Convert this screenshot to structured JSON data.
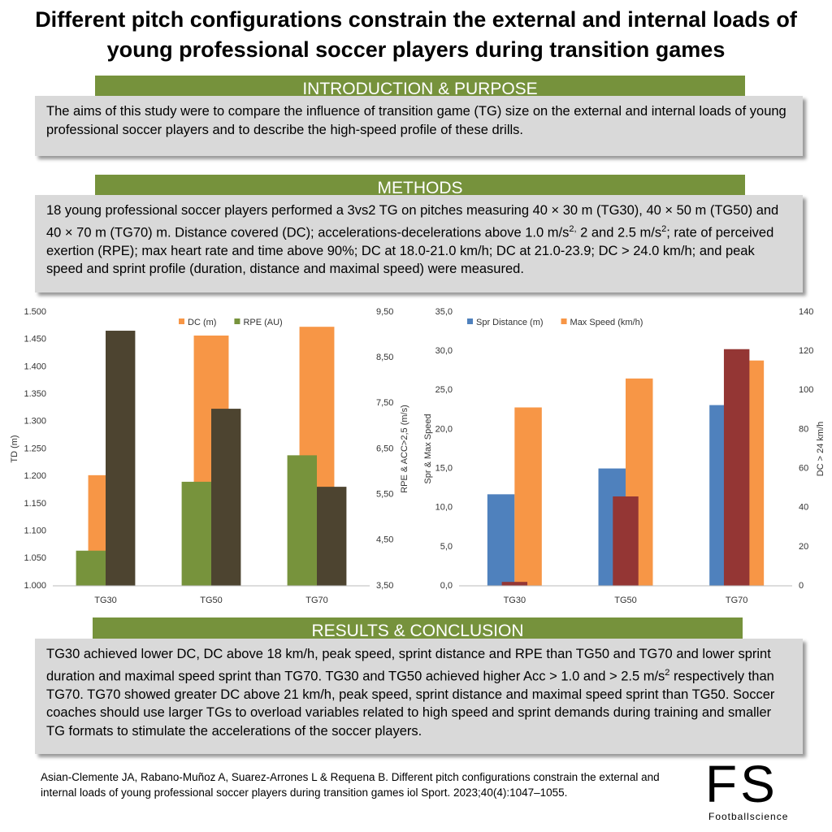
{
  "header": {
    "title": "Different pitch configurations constrain the external and internal loads of young professional soccer players during transition games"
  },
  "introduction": {
    "heading": "INTRODUCTION & PURPOSE",
    "text": [
      {
        "text": "The aims of this study were to compare the influence of transition game (TG) size on the external and internal loads of young professional soccer players and to describe the high-speed profile of these drills."
      }
    ]
  },
  "methods": {
    "heading": "METHODS",
    "text": [
      {
        "text": "18 young professional soccer players performed a 3vs2 TG on pitches measuring 40 × 30 m (TG30), 40 × 50 m (TG50) and 40 × 70 m (TG70) m. Distance covered (DC); accelerations-decelerations above 1.0 m/s"
      },
      {
        "sup": "2,"
      },
      {
        "text": " 2 and 2.5 m/s"
      },
      {
        "sup": "2"
      },
      {
        "text": "; rate of perceived exertion (RPE); max heart rate and time above 90%; DC at 18.0-21.0 km/h; DC at 21.0-23.9; DC > 24.0 km/h; and peak speed and sprint profile (duration, distance and maximal speed) were measured."
      }
    ]
  },
  "chart_data": [
    {
      "type": "bar",
      "categories": [
        "TG30",
        "TG50",
        "TG70"
      ],
      "y_label": "TD (m)",
      "y2_label": "RPE & ACC>2,5 (m/s)",
      "ylim": [
        1000,
        1500
      ],
      "yticks": [
        {
          "value": 1000,
          "label": "1.000"
        },
        {
          "value": 1050,
          "label": "1.050"
        },
        {
          "value": 1100,
          "label": "1.100"
        },
        {
          "value": 1150,
          "label": "1.150"
        },
        {
          "value": 1200,
          "label": "1.200"
        },
        {
          "value": 1250,
          "label": "1.250"
        },
        {
          "value": 1300,
          "label": "1.300"
        },
        {
          "value": 1350,
          "label": "1.350"
        },
        {
          "value": 1400,
          "label": "1.400"
        },
        {
          "value": 1450,
          "label": "1.450"
        },
        {
          "value": 1500,
          "label": "1.500"
        }
      ],
      "y2lim": [
        3.5,
        9.5
      ],
      "y2ticks": [
        {
          "value": 3.5,
          "label": "3,50"
        },
        {
          "value": 4.5,
          "label": "4,50"
        },
        {
          "value": 5.5,
          "label": "5,50"
        },
        {
          "value": 6.5,
          "label": "6,50"
        },
        {
          "value": 7.5,
          "label": "7,50"
        },
        {
          "value": 8.5,
          "label": "8,50"
        },
        {
          "value": 9.5,
          "label": "9,50"
        }
      ],
      "grid": false,
      "series": [
        {
          "name": "DC (m)",
          "color": "#f79646",
          "values": [
            1202,
            1457,
            1473
          ]
        },
        {
          "name": "RPE (AU)",
          "color": "#77933c",
          "axis": "y2",
          "values": [
            4.27,
            5.78,
            6.36
          ]
        },
        {
          "color": "#4d4430",
          "axis": "y2",
          "values": [
            9.09,
            7.38,
            5.67
          ]
        }
      ]
    },
    {
      "type": "bar",
      "categories": [
        "TG30",
        "TG50",
        "TG70"
      ],
      "y_label": "Spr & Max Speed",
      "y2_label": "DC > 24 km/h",
      "ylim": [
        0,
        35
      ],
      "yticks": [
        {
          "value": 0,
          "label": "0,0"
        },
        {
          "value": 5,
          "label": "5,0"
        },
        {
          "value": 10,
          "label": "10,0"
        },
        {
          "value": 15,
          "label": "15,0"
        },
        {
          "value": 20,
          "label": "20,0"
        },
        {
          "value": 25,
          "label": "25,0"
        },
        {
          "value": 30,
          "label": "30,0"
        },
        {
          "value": 35,
          "label": "35,0"
        }
      ],
      "y2lim": [
        0,
        140
      ],
      "y2ticks": [
        0,
        20,
        40,
        60,
        80,
        100,
        120,
        140
      ],
      "grid": false,
      "series": [
        {
          "name": "Spr Distance (m)",
          "color": "#4f81bd",
          "values": [
            11.7,
            15.0,
            23.1
          ]
        },
        {
          "name": "Max Speed (km/h)",
          "color": "#f79646",
          "values": [
            22.8,
            26.5,
            28.8
          ]
        },
        {
          "color": "#943634",
          "axis": "y2",
          "values": [
            2,
            45.7,
            121
          ]
        }
      ]
    }
  ],
  "results": {
    "heading": "RESULTS & CONCLUSION",
    "text": [
      {
        "text": "TG30 achieved lower DC, DC above 18 km/h, peak speed, sprint distance and RPE than TG50 and TG70 and lower sprint duration and maximal speed sprint than TG70. TG30 and TG50 achieved higher Acc > 1.0 and > 2.5 m/s"
      },
      {
        "sup": "2"
      },
      {
        "text": " respectively than TG70. TG70 showed greater DC above 21 km/h, peak speed, sprint distance and maximal speed sprint than TG50. Soccer coaches should use larger TGs to overload variables related to high speed and sprint demands during training and smaller TG formats to stimulate the accelerations of the soccer players."
      }
    ]
  },
  "footer": {
    "citation": "Asian-Clemente JA, Rabano-Muñoz A, Suarez-Arrones L & Requena B. Different pitch configurations constrain the external and internal loads of young professional soccer players during transition games iol Sport. 2023;40(4):1047–1055.",
    "logo": "FS",
    "logo_caption": "Footballscience"
  }
}
